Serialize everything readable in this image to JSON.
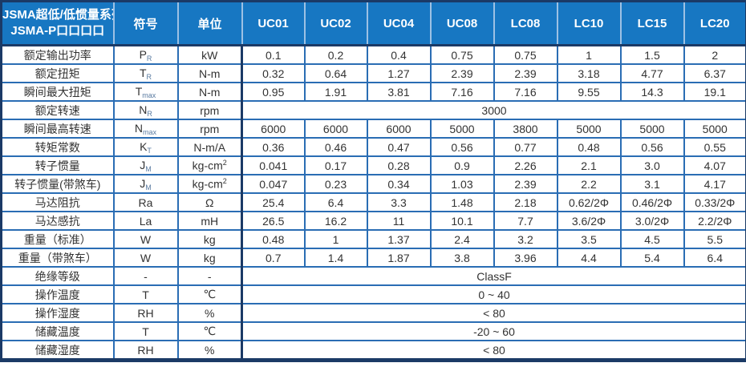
{
  "colors": {
    "header_bg": "#1777c2",
    "header_text": "#ffffff",
    "header_divider": "#9dc1e4",
    "frame_border": "#1b3a66",
    "grid_line": "#2a6db4",
    "cell_text": "#333333"
  },
  "table": {
    "header": {
      "title_line1": "JSMA超低/低惯量系列",
      "title_line2": "JSMA-P口口口口",
      "symbol_col": "符号",
      "unit_col": "单位",
      "models": [
        "UC01",
        "UC02",
        "UC04",
        "UC08",
        "LC08",
        "LC10",
        "LC15",
        "LC20"
      ]
    },
    "rows": [
      {
        "label": "额定输出功率",
        "symbol": "P",
        "sub": "R",
        "unit": "kW",
        "values": [
          "0.1",
          "0.2",
          "0.4",
          "0.75",
          "0.75",
          "1",
          "1.5",
          "2"
        ]
      },
      {
        "label": "额定扭矩",
        "symbol": "T",
        "sub": "R",
        "unit": "N-m",
        "values": [
          "0.32",
          "0.64",
          "1.27",
          "2.39",
          "2.39",
          "3.18",
          "4.77",
          "6.37"
        ]
      },
      {
        "label": "瞬间最大扭矩",
        "symbol": "T",
        "sub": "max",
        "unit": "N-m",
        "values": [
          "0.95",
          "1.91",
          "3.81",
          "7.16",
          "7.16",
          "9.55",
          "14.3",
          "19.1"
        ]
      },
      {
        "label": "额定转速",
        "symbol": "N",
        "sub": "R",
        "unit": "rpm",
        "merged": "3000"
      },
      {
        "label": "瞬间最高转速",
        "symbol": "N",
        "sub": "max",
        "unit": "rpm",
        "values": [
          "6000",
          "6000",
          "6000",
          "5000",
          "3800",
          "5000",
          "5000",
          "5000"
        ]
      },
      {
        "label": "转矩常数",
        "symbol": "K",
        "sub": "T",
        "unit": "N-m/A",
        "values": [
          "0.36",
          "0.46",
          "0.47",
          "0.56",
          "0.77",
          "0.48",
          "0.56",
          "0.55"
        ]
      },
      {
        "label": "转子惯量",
        "symbol": "J",
        "sub": "M",
        "unit": "kg-cm",
        "unit_sup": "2",
        "values": [
          "0.041",
          "0.17",
          "0.28",
          "0.9",
          "2.26",
          "2.1",
          "3.0",
          "4.07"
        ]
      },
      {
        "label": "转子惯量(带煞车)",
        "symbol": "J",
        "sub": "M",
        "unit": "kg-cm",
        "unit_sup": "2",
        "values": [
          "0.047",
          "0.23",
          "0.34",
          "1.03",
          "2.39",
          "2.2",
          "3.1",
          "4.17"
        ]
      },
      {
        "label": "马达阻抗",
        "symbol": "Ra",
        "unit": "Ω",
        "values": [
          "25.4",
          "6.4",
          "3.3",
          "1.48",
          "2.18",
          "0.62/2Φ",
          "0.46/2Φ",
          "0.33/2Φ"
        ]
      },
      {
        "label": "马达感抗",
        "symbol": "La",
        "unit": "mH",
        "values": [
          "26.5",
          "16.2",
          "11",
          "10.1",
          "7.7",
          "3.6/2Φ",
          "3.0/2Φ",
          "2.2/2Φ"
        ]
      },
      {
        "label": "重量（标准）",
        "symbol": "W",
        "unit": "kg",
        "values": [
          "0.48",
          "1",
          "1.37",
          "2.4",
          "3.2",
          "3.5",
          "4.5",
          "5.5"
        ]
      },
      {
        "label": "重量（带煞车）",
        "symbol": "W",
        "unit": "kg",
        "values": [
          "0.7",
          "1.4",
          "1.87",
          "3.8",
          "3.96",
          "4.4",
          "5.4",
          "6.4"
        ]
      },
      {
        "label": "绝缘等级",
        "symbol": "-",
        "unit": "-",
        "merged": "ClassF"
      },
      {
        "label": "操作温度",
        "symbol": "T",
        "unit": "℃",
        "merged": "0 ~ 40"
      },
      {
        "label": "操作湿度",
        "symbol": "RH",
        "unit": "%",
        "merged": "< 80"
      },
      {
        "label": "储藏温度",
        "symbol": "T",
        "unit": "℃",
        "merged": "-20 ~ 60"
      },
      {
        "label": "储藏湿度",
        "symbol": "RH",
        "unit": "%",
        "merged": "< 80"
      }
    ]
  }
}
